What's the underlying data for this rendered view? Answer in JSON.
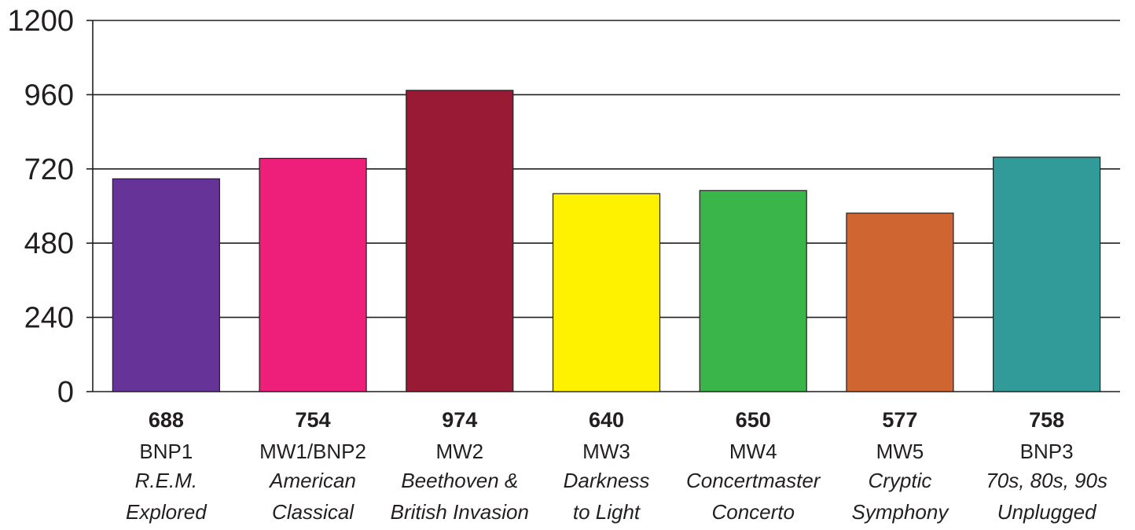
{
  "chart_data": {
    "type": "bar",
    "title": "",
    "xlabel": "",
    "ylabel": "",
    "ylim": [
      0,
      1200
    ],
    "yticks": [
      0,
      240,
      480,
      720,
      960,
      1200
    ],
    "grid": true,
    "legend": "none",
    "categories": [
      {
        "code": "BNP1",
        "program": [
          "R.E.M.",
          "Explored"
        ],
        "value_label": "688",
        "color": "#663399"
      },
      {
        "code": "MW1/BNP2",
        "program": [
          "American",
          "Classical"
        ],
        "value_label": "754",
        "color": "#ed1f7a"
      },
      {
        "code": "MW2",
        "program": [
          "Beethoven &",
          "British Invasion"
        ],
        "value_label": "974",
        "color": "#991a35"
      },
      {
        "code": "MW3",
        "program": [
          "Darkness",
          "to Light"
        ],
        "value_label": "640",
        "color": "#fff200"
      },
      {
        "code": "MW4",
        "program": [
          "Concertmaster",
          "Concerto"
        ],
        "value_label": "650",
        "color": "#3ab54a"
      },
      {
        "code": "MW5",
        "program": [
          "Cryptic",
          "Symphony"
        ],
        "value_label": "577",
        "color": "#cf6631"
      },
      {
        "code": "BNP3",
        "program": [
          "70s, 80s, 90s",
          "Unplugged"
        ],
        "value_label": "758",
        "color": "#319b9a"
      }
    ],
    "values": [
      688,
      754,
      974,
      640,
      650,
      577,
      758
    ]
  }
}
